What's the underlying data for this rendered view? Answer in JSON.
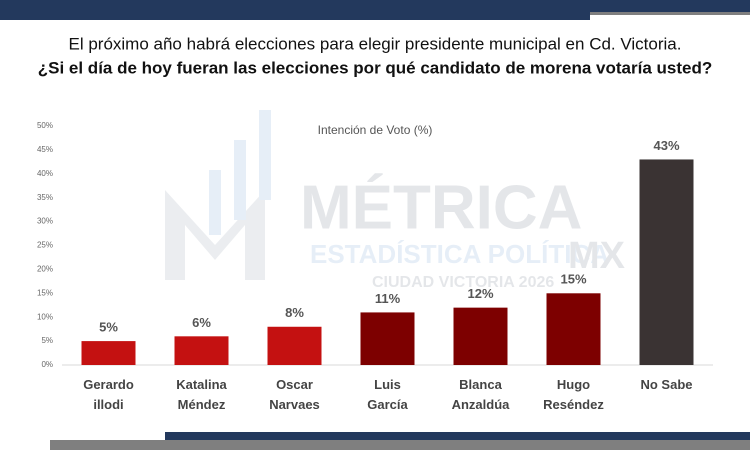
{
  "title": "El próximo año habrá elecciones para elegir presidente municipal en Cd. Victoria.",
  "subtitle": "¿Si el día de hoy fueran las elecciones por qué candidato de morena votaría usted?",
  "watermark": {
    "brand": "MÉTRICA",
    "line": "ESTADÍSTICA POLÍTICA",
    "suffix": "MX",
    "tagline": "CIUDAD VICTORIA 2026"
  },
  "chart_data": {
    "type": "bar",
    "title": "Intención de Voto (%)",
    "categories": [
      "Gerardo illodi",
      "Katalina Méndez",
      "Oscar Narvaes",
      "Luis García",
      "Blanca Anzaldúa",
      "Hugo Reséndez",
      "No Sabe"
    ],
    "values": [
      5,
      6,
      8,
      11,
      12,
      15,
      43
    ],
    "value_labels": [
      "5%",
      "6%",
      "8%",
      "11%",
      "12%",
      "15%",
      "43%"
    ],
    "colors": [
      "#c41111",
      "#c41111",
      "#c41111",
      "#7d0000",
      "#7d0000",
      "#7d0000",
      "#3a3333"
    ],
    "ylim": [
      0,
      50
    ],
    "yticks": [
      {
        "value": 0,
        "label": "0%"
      },
      {
        "value": 5,
        "label": "5%"
      },
      {
        "value": 10,
        "label": "10%"
      },
      {
        "value": 15,
        "label": "15%"
      },
      {
        "value": 20,
        "label": "20%"
      },
      {
        "value": 25,
        "label": "25%"
      },
      {
        "value": 30,
        "label": "30%"
      },
      {
        "value": 35,
        "label": "35%"
      },
      {
        "value": 40,
        "label": "40%"
      },
      {
        "value": 45,
        "label": "45%"
      },
      {
        "value": 50,
        "label": "50%"
      }
    ],
    "grid": false
  }
}
